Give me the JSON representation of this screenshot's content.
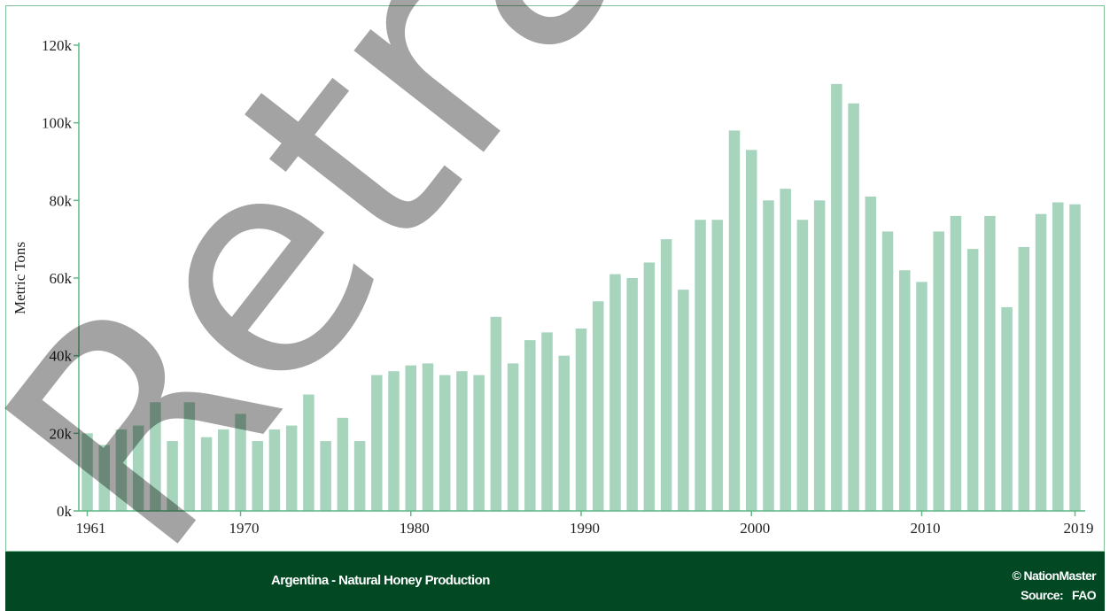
{
  "colors": {
    "bar": "#a6d4bc",
    "axis": "#5fb985",
    "footer_bg": "#024822",
    "footer_text": "#ffffff"
  },
  "watermark": "Retract",
  "footer": {
    "title": "Argentina - Natural Honey Production",
    "copyright": "© NationMaster",
    "source_label": "Source:",
    "source_value": "FAO"
  },
  "chart_data": {
    "type": "bar",
    "title": "",
    "xlabel": "",
    "ylabel": "Metric Tons",
    "ylim": [
      0,
      120000
    ],
    "yticks": [
      0,
      20000,
      40000,
      60000,
      80000,
      100000,
      120000
    ],
    "ytick_labels": [
      "0k",
      "20k",
      "40k",
      "60k",
      "80k",
      "100k",
      "120k"
    ],
    "xtick_labels": [
      "1961",
      "1970",
      "1980",
      "1990",
      "2000",
      "2010",
      "2019"
    ],
    "grid": false,
    "legend": "none",
    "categories": [
      1961,
      1962,
      1963,
      1964,
      1965,
      1966,
      1967,
      1968,
      1969,
      1970,
      1971,
      1972,
      1973,
      1974,
      1975,
      1976,
      1977,
      1978,
      1979,
      1980,
      1981,
      1982,
      1983,
      1984,
      1985,
      1986,
      1987,
      1988,
      1989,
      1990,
      1991,
      1992,
      1993,
      1994,
      1995,
      1996,
      1997,
      1998,
      1999,
      2000,
      2001,
      2002,
      2003,
      2004,
      2005,
      2006,
      2007,
      2008,
      2009,
      2010,
      2011,
      2012,
      2013,
      2014,
      2015,
      2016,
      2017,
      2018,
      2019
    ],
    "values": [
      20000,
      17000,
      21000,
      22000,
      28000,
      18000,
      28000,
      19000,
      21000,
      25000,
      18000,
      21000,
      22000,
      30000,
      18000,
      24000,
      18000,
      35000,
      36000,
      37500,
      38000,
      35000,
      36000,
      35000,
      50000,
      38000,
      44000,
      46000,
      40000,
      47000,
      54000,
      61000,
      60000,
      64000,
      70000,
      57000,
      75000,
      75000,
      98000,
      93000,
      80000,
      83000,
      75000,
      80000,
      110000,
      105000,
      81000,
      72000,
      62000,
      59000,
      72000,
      76000,
      67500,
      76000,
      52500,
      68000,
      76500,
      79500,
      79000
    ]
  }
}
